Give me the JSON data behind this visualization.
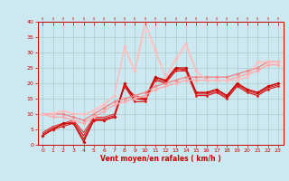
{
  "xlabel": "Vent moyen/en rafales ( km/h )",
  "xlim": [
    -0.5,
    23.5
  ],
  "ylim": [
    0,
    40
  ],
  "xticks": [
    0,
    1,
    2,
    3,
    4,
    5,
    6,
    7,
    8,
    9,
    10,
    11,
    12,
    13,
    14,
    15,
    16,
    17,
    18,
    19,
    20,
    21,
    22,
    23
  ],
  "yticks": [
    0,
    5,
    10,
    15,
    20,
    25,
    30,
    35,
    40
  ],
  "background_color": "#cce8f0",
  "grid_color": "#aacccc",
  "series": [
    {
      "x": [
        0,
        1,
        2,
        3,
        4,
        5,
        6,
        7,
        8,
        9,
        10,
        11,
        12,
        13,
        14,
        15,
        16,
        17,
        18,
        19,
        20,
        21,
        22,
        23
      ],
      "y": [
        3,
        5,
        7,
        7,
        1,
        8,
        8,
        9,
        20,
        15,
        15,
        22,
        21,
        25,
        25,
        17,
        17,
        18,
        16,
        20,
        18,
        17,
        19,
        20
      ],
      "color": "#cc0000",
      "lw": 0.9,
      "marker": "D",
      "ms": 1.8
    },
    {
      "x": [
        0,
        1,
        2,
        3,
        4,
        5,
        6,
        7,
        8,
        9,
        10,
        11,
        12,
        13,
        14,
        15,
        16,
        17,
        18,
        19,
        20,
        21,
        22,
        23
      ],
      "y": [
        3,
        5,
        6,
        7,
        2,
        8,
        8,
        9,
        19,
        14,
        14,
        21,
        20,
        24,
        24,
        16,
        16,
        17,
        15,
        19,
        17,
        16,
        18,
        19
      ],
      "color": "#dd1111",
      "lw": 0.8,
      "marker": "D",
      "ms": 1.5
    },
    {
      "x": [
        0,
        1,
        2,
        3,
        4,
        5,
        6,
        7,
        8,
        9,
        10,
        11,
        12,
        13,
        14,
        15,
        16,
        17,
        18,
        19,
        20,
        21,
        22,
        23
      ],
      "y": [
        3.5,
        5.5,
        6.5,
        7.5,
        3,
        8.5,
        8.5,
        9.5,
        19,
        15,
        14.5,
        21.5,
        20.5,
        24.5,
        24.5,
        16.5,
        16.5,
        17.5,
        15.5,
        19.5,
        17.5,
        16.5,
        18.5,
        19.5
      ],
      "color": "#cc0000",
      "lw": 0.7,
      "marker": null,
      "ms": 0
    },
    {
      "x": [
        0,
        1,
        2,
        3,
        4,
        5,
        6,
        7,
        8,
        9,
        10,
        11,
        12,
        13,
        14,
        15,
        16,
        17,
        18,
        19,
        20,
        21,
        22,
        23
      ],
      "y": [
        4,
        6,
        7,
        8,
        4,
        9,
        9,
        10,
        19,
        16,
        15,
        22,
        21,
        25,
        24,
        17,
        17,
        18,
        16,
        20,
        18,
        17,
        19,
        20
      ],
      "color": "#ee2222",
      "lw": 0.7,
      "marker": null,
      "ms": 0
    },
    {
      "x": [
        0,
        1,
        2,
        3,
        4,
        5,
        6,
        7,
        8,
        9,
        10,
        11,
        12,
        13,
        14,
        15,
        16,
        17,
        18,
        19,
        20,
        21,
        22,
        23
      ],
      "y": [
        10,
        10,
        10,
        9,
        8,
        10,
        12,
        14,
        15,
        16,
        17,
        19,
        20,
        21,
        22,
        22,
        22,
        22,
        22,
        23,
        24,
        25,
        27,
        27
      ],
      "color": "#ee8888",
      "lw": 1.0,
      "marker": "D",
      "ms": 2.0
    },
    {
      "x": [
        0,
        1,
        2,
        3,
        4,
        5,
        6,
        7,
        8,
        9,
        10,
        11,
        12,
        13,
        14,
        15,
        16,
        17,
        18,
        19,
        20,
        21,
        22,
        23
      ],
      "y": [
        10,
        9,
        9,
        8,
        7,
        9,
        11,
        13,
        14,
        15,
        16,
        18,
        19,
        20,
        21,
        21,
        21,
        21,
        21,
        22,
        23,
        24,
        26,
        26
      ],
      "color": "#ffaaaa",
      "lw": 1.0,
      "marker": "D",
      "ms": 2.0
    },
    {
      "x": [
        0,
        1,
        2,
        3,
        4,
        5,
        6,
        7,
        8,
        9,
        10,
        11,
        12,
        13,
        14,
        15,
        16,
        17,
        18,
        19,
        20,
        21,
        22,
        23
      ],
      "y": [
        10,
        10,
        11,
        10,
        10,
        11,
        13,
        16,
        32,
        24,
        40,
        31,
        22,
        28,
        33,
        24,
        21,
        21,
        21,
        21,
        22,
        27,
        27,
        27
      ],
      "color": "#ffbbbb",
      "lw": 0.9,
      "marker": "D",
      "ms": 1.8
    },
    {
      "x": [
        0,
        1,
        2,
        3,
        4,
        5,
        6,
        7,
        8,
        9,
        10,
        11,
        12,
        13,
        14,
        15,
        16,
        17,
        18,
        19,
        20,
        21,
        22,
        23
      ],
      "y": [
        10,
        10.5,
        11,
        10.5,
        9.5,
        11.5,
        13.5,
        16,
        31,
        23.5,
        38,
        30,
        22,
        27.5,
        32,
        23.5,
        21,
        21,
        21,
        21,
        22,
        26.5,
        26.5,
        26.5
      ],
      "color": "#ffcccc",
      "lw": 0.7,
      "marker": null,
      "ms": 0
    }
  ]
}
